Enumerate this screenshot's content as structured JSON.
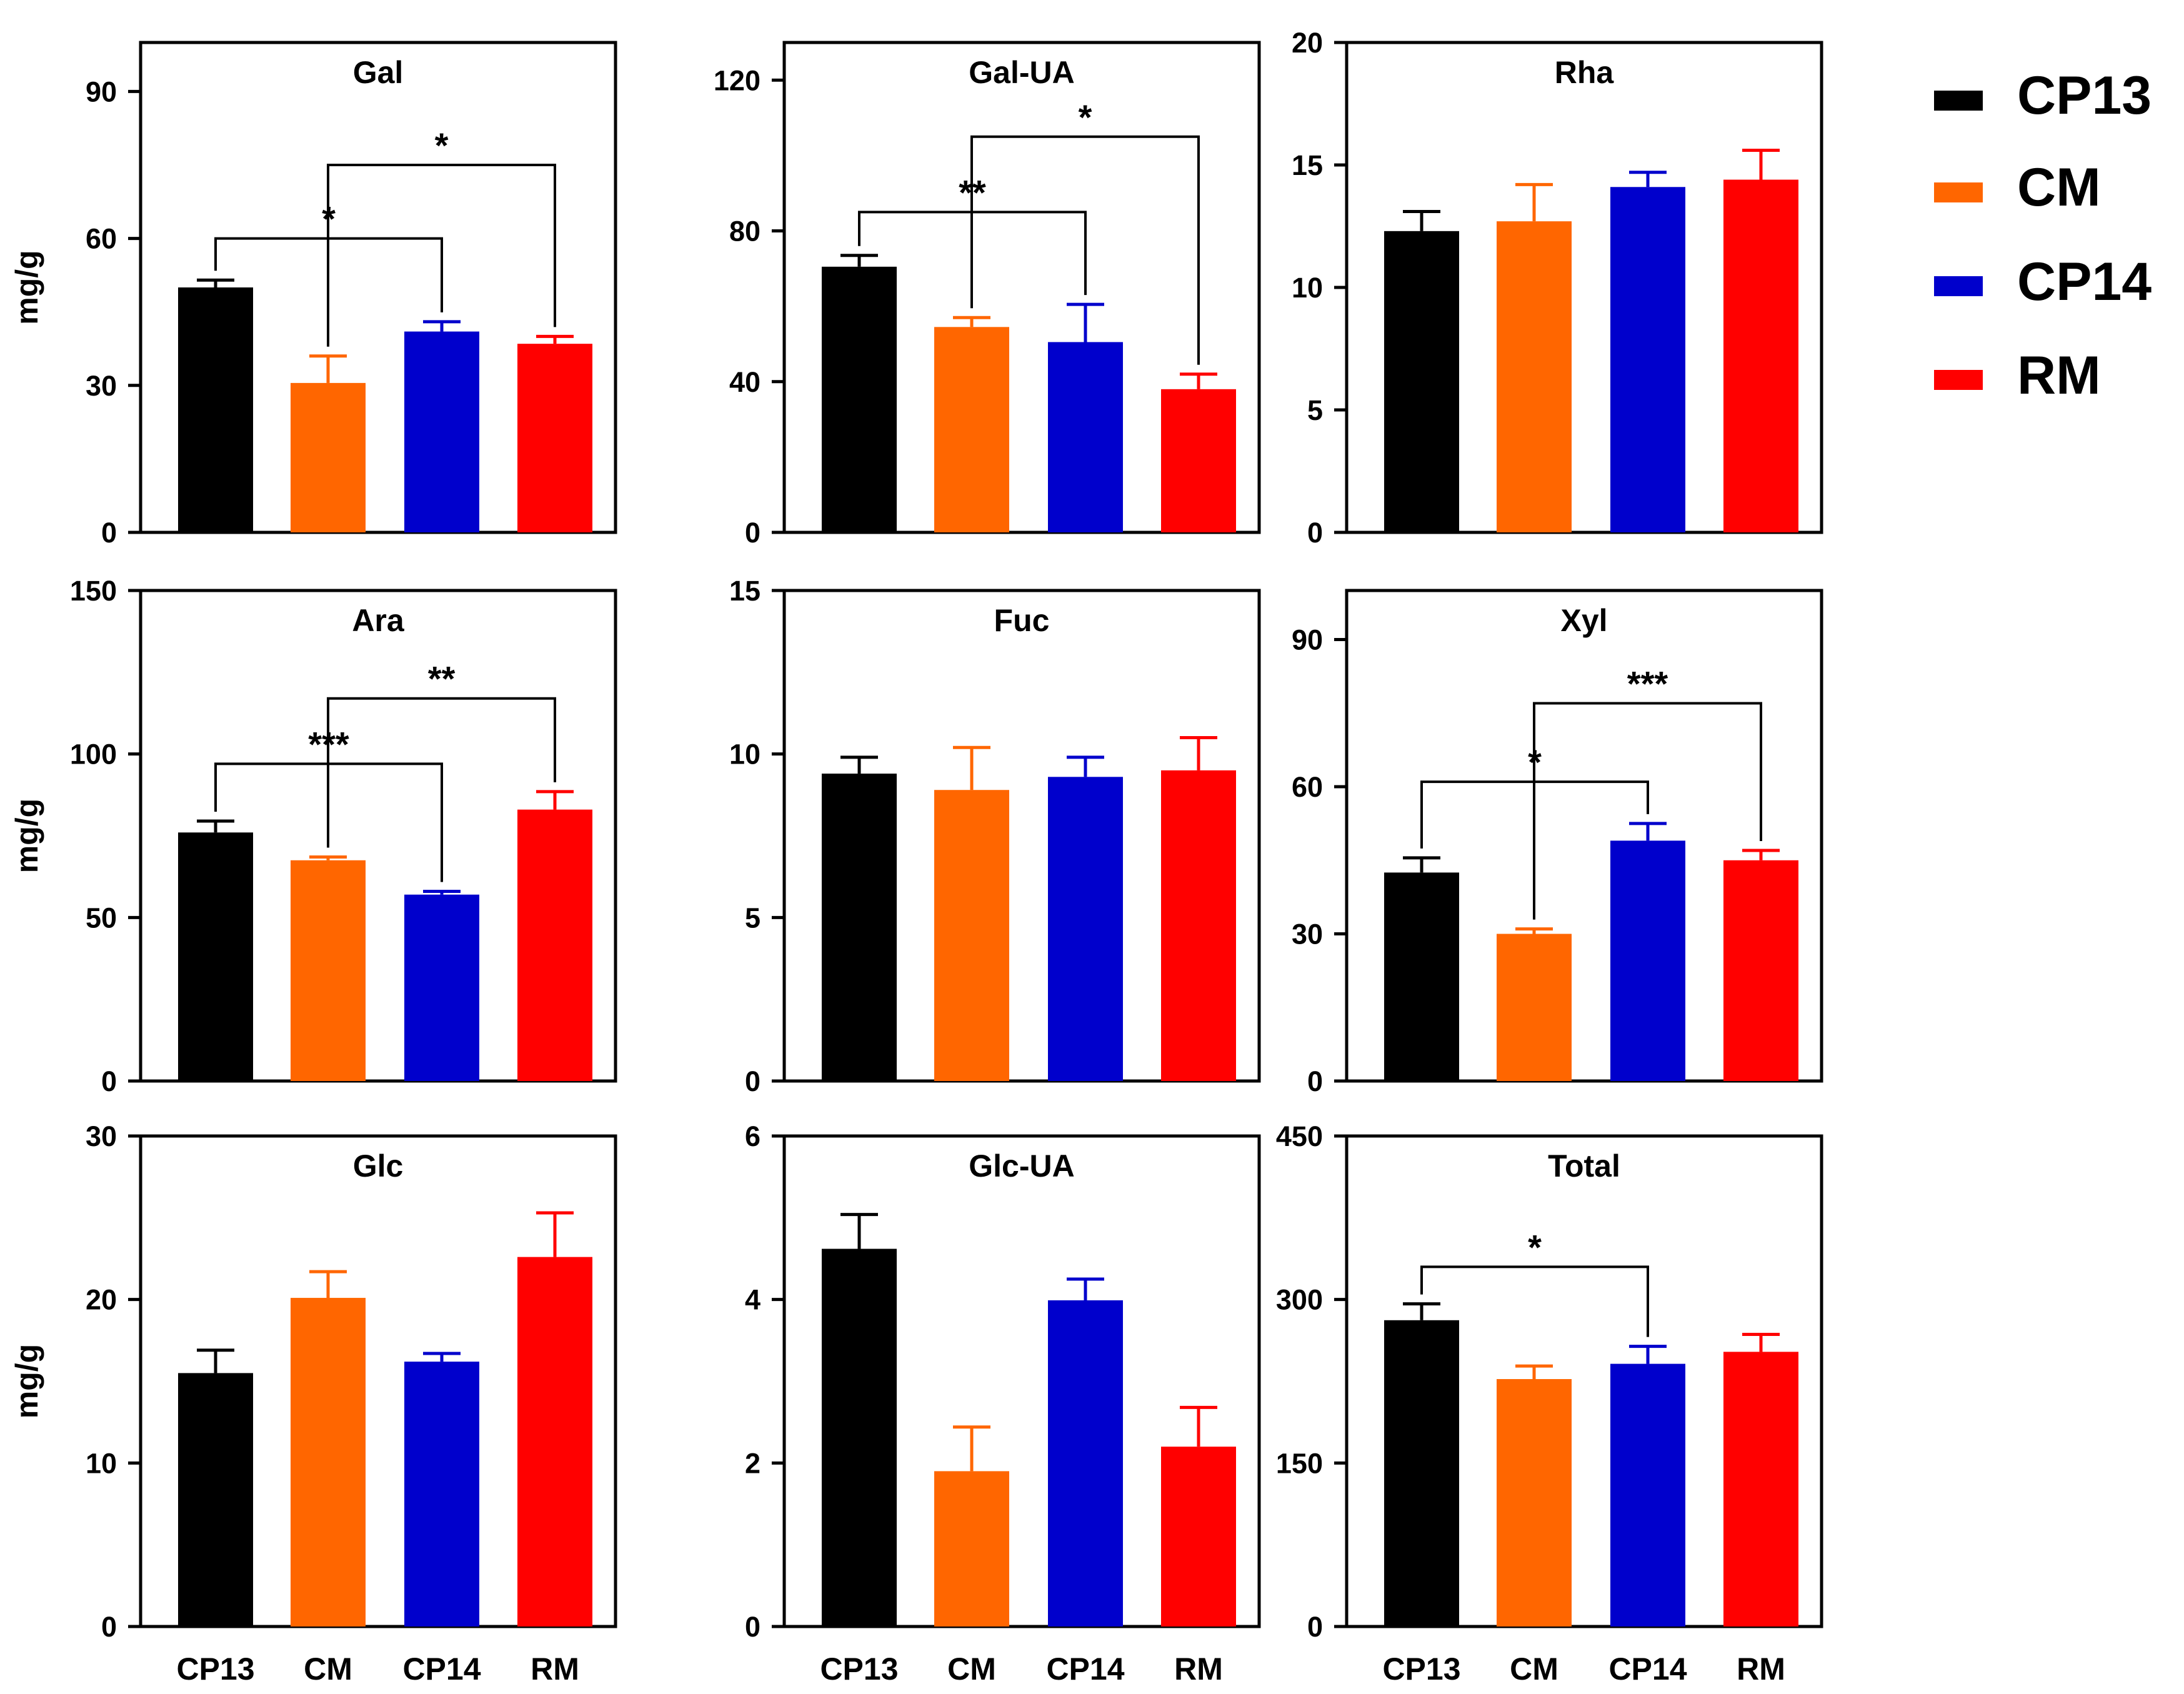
{
  "legend": {
    "position": "right",
    "entries": [
      {
        "label": "CP13",
        "color": "#000000"
      },
      {
        "label": "CM",
        "color": "#ff6600"
      },
      {
        "label": "CP14",
        "color": "#0000cc"
      },
      {
        "label": "RM",
        "color": "#ff0000"
      }
    ]
  },
  "chart_data": [
    {
      "type": "bar",
      "title": "Gal",
      "ylabel": "mg/g",
      "categories": [
        "CP13",
        "CM",
        "CP14",
        "RM"
      ],
      "ylim": [
        0,
        100
      ],
      "yticks": [
        0,
        30,
        60,
        90
      ],
      "values": [
        50,
        30.5,
        41,
        38.5
      ],
      "errors": [
        1.5,
        5.5,
        2,
        1.5
      ],
      "significance": [
        {
          "from": 0,
          "to": 2,
          "label": "*",
          "y": 60
        },
        {
          "from": 1,
          "to": 3,
          "label": "*",
          "y": 75
        }
      ]
    },
    {
      "type": "bar",
      "title": "Gal-UA",
      "ylabel": "",
      "categories": [
        "CP13",
        "CM",
        "CP14",
        "RM"
      ],
      "ylim": [
        0,
        130
      ],
      "yticks": [
        0,
        40,
        80,
        120
      ],
      "values": [
        70.5,
        54.5,
        50.5,
        38
      ],
      "errors": [
        3,
        2.5,
        10,
        4
      ],
      "significance": [
        {
          "from": 0,
          "to": 2,
          "label": "**",
          "y": 85
        },
        {
          "from": 1,
          "to": 3,
          "label": "*",
          "y": 105
        }
      ]
    },
    {
      "type": "bar",
      "title": "Rha",
      "ylabel": "",
      "categories": [
        "CP13",
        "CM",
        "CP14",
        "RM"
      ],
      "ylim": [
        0,
        20
      ],
      "yticks": [
        0,
        5,
        10,
        15,
        20
      ],
      "values": [
        12.3,
        12.7,
        14.1,
        14.4
      ],
      "errors": [
        0.8,
        1.5,
        0.6,
        1.2
      ],
      "significance": []
    },
    {
      "type": "bar",
      "title": "Ara",
      "ylabel": "mg/g",
      "categories": [
        "CP13",
        "CM",
        "CP14",
        "RM"
      ],
      "ylim": [
        0,
        150
      ],
      "yticks": [
        0,
        50,
        100,
        150
      ],
      "values": [
        76,
        67.5,
        57,
        83
      ],
      "errors": [
        3.5,
        1,
        1,
        5.5
      ],
      "significance": [
        {
          "from": 0,
          "to": 2,
          "label": "***",
          "y": 97
        },
        {
          "from": 1,
          "to": 3,
          "label": "**",
          "y": 117
        }
      ]
    },
    {
      "type": "bar",
      "title": "Fuc",
      "ylabel": "",
      "categories": [
        "CP13",
        "CM",
        "CP14",
        "RM"
      ],
      "ylim": [
        0,
        15
      ],
      "yticks": [
        0,
        5,
        10,
        15
      ],
      "values": [
        9.4,
        8.9,
        9.3,
        9.5
      ],
      "errors": [
        0.5,
        1.3,
        0.6,
        1
      ],
      "significance": []
    },
    {
      "type": "bar",
      "title": "Xyl",
      "ylabel": "",
      "categories": [
        "CP13",
        "CM",
        "CP14",
        "RM"
      ],
      "ylim": [
        0,
        100
      ],
      "yticks": [
        0,
        30,
        60,
        90
      ],
      "values": [
        42.5,
        30,
        49,
        45
      ],
      "errors": [
        3,
        1,
        3.5,
        2
      ],
      "significance": [
        {
          "from": 0,
          "to": 2,
          "label": "*",
          "y": 61
        },
        {
          "from": 1,
          "to": 3,
          "label": "***",
          "y": 77
        }
      ]
    },
    {
      "type": "bar",
      "title": "Glc",
      "ylabel": "mg/g",
      "categories": [
        "CP13",
        "CM",
        "CP14",
        "RM"
      ],
      "ylim": [
        0,
        30
      ],
      "yticks": [
        0,
        10,
        20,
        30
      ],
      "values": [
        15.5,
        20.1,
        16.2,
        22.6
      ],
      "errors": [
        1.4,
        1.6,
        0.5,
        2.7
      ],
      "significance": []
    },
    {
      "type": "bar",
      "title": "Glc-UA",
      "ylabel": "",
      "categories": [
        "CP13",
        "CM",
        "CP14",
        "RM"
      ],
      "ylim": [
        0,
        6
      ],
      "yticks": [
        0,
        2,
        4,
        6
      ],
      "values": [
        4.62,
        1.9,
        3.99,
        2.2
      ],
      "errors": [
        0.42,
        0.54,
        0.26,
        0.48
      ],
      "significance": []
    },
    {
      "type": "bar",
      "title": "Total",
      "ylabel": "",
      "categories": [
        "CP13",
        "CM",
        "CP14",
        "RM"
      ],
      "ylim": [
        0,
        450
      ],
      "yticks": [
        0,
        150,
        300,
        450
      ],
      "values": [
        281,
        227,
        241,
        252
      ],
      "errors": [
        15,
        12,
        16,
        16
      ],
      "significance": [
        {
          "from": 0,
          "to": 2,
          "label": "*",
          "y": 330
        }
      ]
    }
  ]
}
